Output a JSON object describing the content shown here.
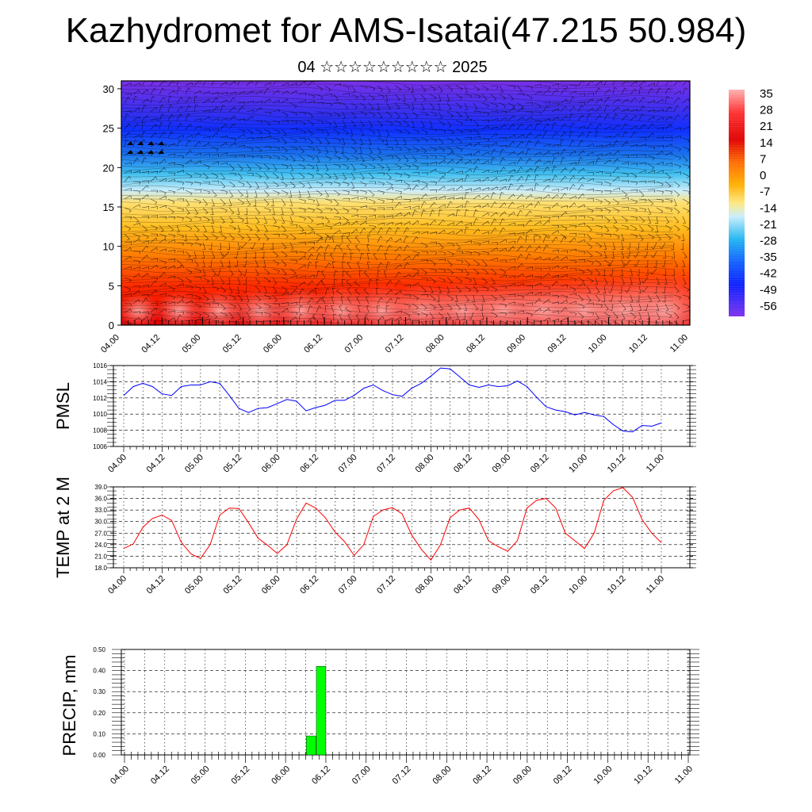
{
  "title": "Kazhydromet for AMS-Isatai(47.215 50.984)",
  "subtitle": "04 ☆☆☆☆☆☆☆☆☆ 2025",
  "colorbar": {
    "labels": [
      "35",
      "28",
      "21",
      "14",
      "7",
      "0",
      "-7",
      "-14",
      "-21",
      "-28",
      "-35",
      "-42",
      "-49",
      "-56"
    ],
    "colors": [
      "#ff9a9a",
      "#e60000",
      "#ff6400",
      "#ffaa00",
      "#ffe680",
      "#a0e6ff",
      "#00aaff",
      "#0050ff",
      "#6a2cf0"
    ]
  },
  "chart_data": [
    {
      "type": "heatmap",
      "name": "temperature-wind-section",
      "x_ticks": [
        "04.00",
        "04.12",
        "05.00",
        "05.12",
        "06.00",
        "06.12",
        "07.00",
        "07.12",
        "08.00",
        "08.12",
        "09.00",
        "09.12",
        "10.00",
        "10.12",
        "11.00"
      ],
      "y_ticks": [
        "0",
        "5",
        "10",
        "15",
        "20",
        "25",
        "30"
      ],
      "ylim": [
        0,
        31
      ],
      "color_range": [
        -56,
        35
      ]
    },
    {
      "type": "line",
      "ylabel": "PMSL",
      "ylim": [
        1006,
        1016
      ],
      "y_ticks": [
        "1006",
        "1008",
        "1010",
        "1012",
        "1014",
        "1016"
      ],
      "x_ticks": [
        "04.00",
        "04.12",
        "05.00",
        "05.12",
        "06.00",
        "06.12",
        "07.00",
        "07.12",
        "08.00",
        "08.12",
        "09.00",
        "09.12",
        "10.00",
        "10.12",
        "11.00"
      ],
      "color": "#0000ff",
      "values": [
        1012.3,
        1013.4,
        1013.8,
        1013.4,
        1012.5,
        1012.3,
        1013.4,
        1013.6,
        1013.6,
        1014.0,
        1013.8,
        1012.3,
        1010.7,
        1010.2,
        1010.7,
        1010.8,
        1011.3,
        1011.8,
        1011.6,
        1010.4,
        1010.8,
        1011.1,
        1011.7,
        1011.7,
        1012.3,
        1013.2,
        1013.6,
        1012.9,
        1012.4,
        1012.2,
        1013.2,
        1013.8,
        1014.7,
        1015.7,
        1015.6,
        1014.6,
        1013.6,
        1013.3,
        1013.6,
        1013.4,
        1013.5,
        1014.1,
        1013.4,
        1012.1,
        1010.9,
        1010.5,
        1010.3,
        1009.9,
        1010.2,
        1009.9,
        1009.7,
        1008.7,
        1007.9,
        1007.8,
        1008.6,
        1008.5,
        1008.9
      ]
    },
    {
      "type": "line",
      "ylabel": "TEMP at 2 M",
      "ylim": [
        18,
        39
      ],
      "y_ticks": [
        "18.0",
        "21.0",
        "24.0",
        "27.0",
        "30.0",
        "33.0",
        "36.0",
        "39.0"
      ],
      "x_ticks": [
        "04.00",
        "04.12",
        "05.00",
        "05.12",
        "06.00",
        "06.12",
        "07.00",
        "07.12",
        "08.00",
        "08.12",
        "09.00",
        "09.12",
        "10.00",
        "10.12",
        "11.00"
      ],
      "color": "#ff0000",
      "values": [
        23.0,
        24.2,
        28.5,
        30.8,
        31.7,
        30.3,
        24.6,
        21.6,
        20.4,
        24.0,
        31.7,
        33.5,
        33.4,
        29.7,
        25.7,
        23.8,
        21.7,
        24.0,
        30.6,
        34.8,
        33.5,
        31.0,
        27.3,
        24.8,
        21.2,
        24.0,
        31.3,
        33.0,
        33.6,
        32.0,
        26.5,
        22.8,
        20.0,
        24.0,
        31.0,
        33.0,
        33.5,
        30.5,
        25.0,
        23.5,
        22.3,
        25.0,
        33.5,
        35.5,
        36.0,
        33.5,
        27.0,
        25.0,
        23.0,
        27.0,
        35.5,
        38.0,
        38.8,
        36.3,
        30.5,
        27.0,
        24.5
      ]
    },
    {
      "type": "bar",
      "ylabel": "PRECIP, mm",
      "ylim": [
        0,
        0.5
      ],
      "y_ticks": [
        "0.00",
        "0.10",
        "0.20",
        "0.30",
        "0.40",
        "0.50"
      ],
      "x_ticks": [
        "04.00",
        "04.12",
        "05.00",
        "05.12",
        "06.00",
        "06.12",
        "07.00",
        "07.12",
        "08.00",
        "08.12",
        "09.00",
        "09.12",
        "10.00",
        "10.12",
        "11.00"
      ],
      "color": "#00ff00",
      "bars": [
        {
          "x": "06.09",
          "value": 0.09
        },
        {
          "x": "06.12",
          "value": 0.42
        }
      ]
    }
  ]
}
